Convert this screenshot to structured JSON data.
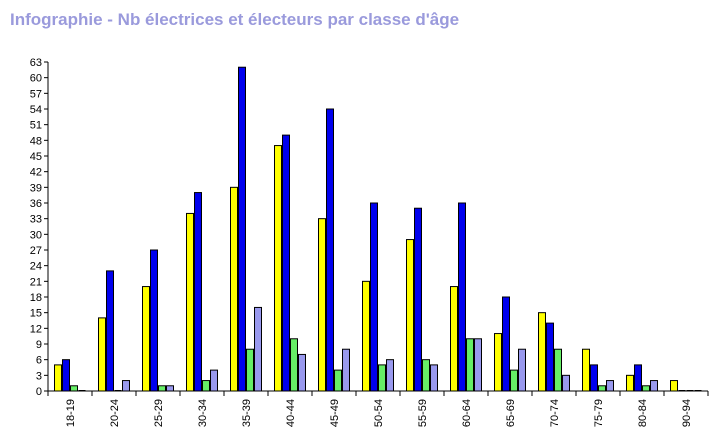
{
  "chart_data": {
    "type": "bar",
    "title": "Infographie - Nb électrices et électeurs par classe d'âge",
    "categories": [
      "18-19",
      "20-24",
      "25-29",
      "30-34",
      "35-39",
      "40-44",
      "45-49",
      "50-54",
      "55-59",
      "60-64",
      "65-69",
      "70-74",
      "75-79",
      "80-84",
      "90-94"
    ],
    "series": [
      {
        "color": "#ffff00",
        "values": [
          5,
          14,
          20,
          34,
          39,
          47,
          33,
          21,
          29,
          20,
          11,
          15,
          8,
          3,
          2
        ]
      },
      {
        "color": "#0000ee",
        "values": [
          6,
          23,
          27,
          38,
          62,
          49,
          54,
          36,
          35,
          36,
          18,
          13,
          5,
          5,
          0
        ]
      },
      {
        "color": "#66ee66",
        "values": [
          1,
          0,
          1,
          2,
          8,
          10,
          4,
          5,
          6,
          10,
          4,
          8,
          1,
          1,
          0
        ]
      },
      {
        "color": "#9999ee",
        "values": [
          0,
          2,
          1,
          4,
          16,
          7,
          8,
          6,
          5,
          10,
          8,
          3,
          2,
          2,
          0
        ]
      }
    ],
    "yticks": [
      0,
      3,
      6,
      9,
      12,
      15,
      18,
      21,
      24,
      27,
      30,
      33,
      36,
      39,
      42,
      45,
      48,
      51,
      54,
      57,
      60,
      63
    ],
    "ylim": [
      0,
      63
    ],
    "grid": false,
    "legend": "none"
  }
}
